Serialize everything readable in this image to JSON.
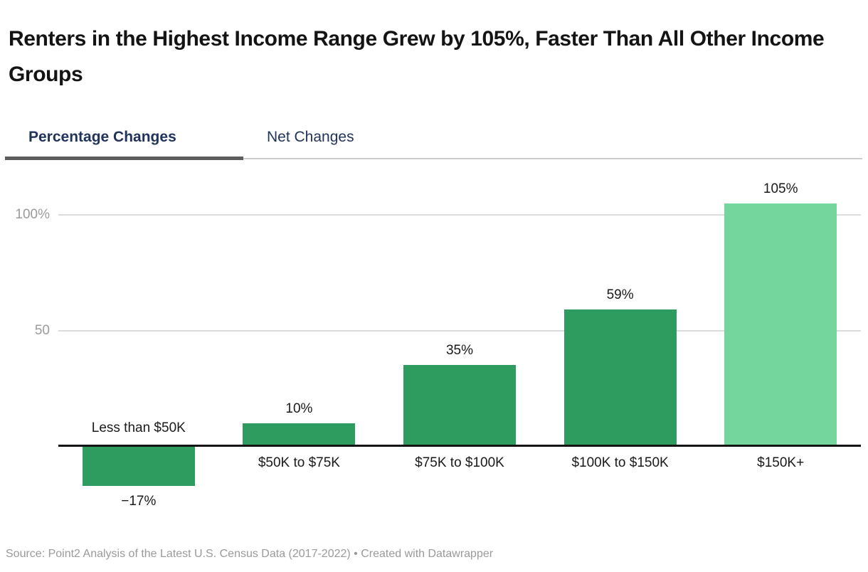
{
  "header": {
    "title": "Renters in the Highest Income Range Grew by 105%, Faster Than All Other Income Groups"
  },
  "tabs": [
    {
      "label": "Percentage Changes",
      "active": true
    },
    {
      "label": "Net Changes",
      "active": false
    }
  ],
  "chart_data": {
    "type": "bar",
    "title": "Percentage change in renters by income group, 2017-2022",
    "categories": [
      "Less than $50K",
      "$50K to $75K",
      "$75K to $100K",
      "$100K to $150K",
      "$150K+"
    ],
    "values": [
      -17,
      10,
      35,
      59,
      105
    ],
    "value_labels": [
      "−17%",
      "10%",
      "35%",
      "59%",
      "105%"
    ],
    "yticks": [
      {
        "value": 100,
        "label": "100%"
      },
      {
        "value": 50,
        "label": "50"
      }
    ],
    "ylim": [
      -25,
      115
    ],
    "grid": "horizontal-only",
    "legend": "none",
    "bar_color_default": "#2e9c5f",
    "bar_color_highlight": "#74d69c",
    "highlight_index": 4
  },
  "colors": {
    "title_text": "#141414",
    "tab_text": "#22335b",
    "active_tab_indicator": "#5c5c5c",
    "tab_track": "#cccccc",
    "gridline": "#dcdcdc",
    "y_tick_text": "#9b9b9b",
    "axis_line": "#141414",
    "label_text": "#1a1a1a",
    "source_text": "#9a9a9a"
  },
  "footer": {
    "source": "Source: Point2 Analysis of the Latest U.S. Census Data (2017-2022) • Created with Datawrapper"
  }
}
